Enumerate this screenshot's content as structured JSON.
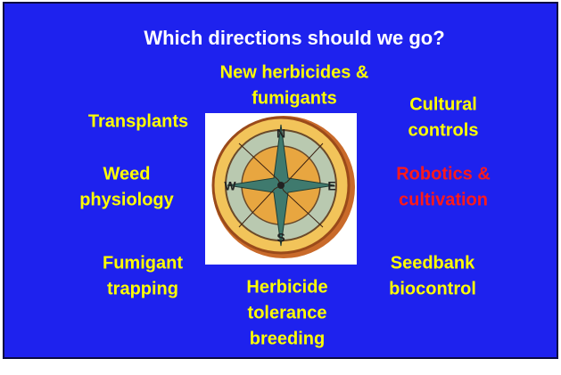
{
  "title": "Which directions should we go?",
  "labels": [
    {
      "lines": [
        "New herbicides &",
        "fumigants"
      ]
    },
    {
      "lines": [
        "Transplants"
      ]
    },
    {
      "lines": [
        "Cultural",
        "controls"
      ]
    },
    {
      "lines": [
        "Weed",
        "physiology"
      ]
    },
    {
      "lines": [
        "Robotics &",
        "cultivation"
      ]
    },
    {
      "lines": [
        "Fumigant",
        "trapping"
      ]
    },
    {
      "lines": [
        "Seedbank",
        "biocontrol"
      ]
    },
    {
      "lines": [
        "Herbicide",
        "tolerance",
        "breeding"
      ]
    }
  ]
}
